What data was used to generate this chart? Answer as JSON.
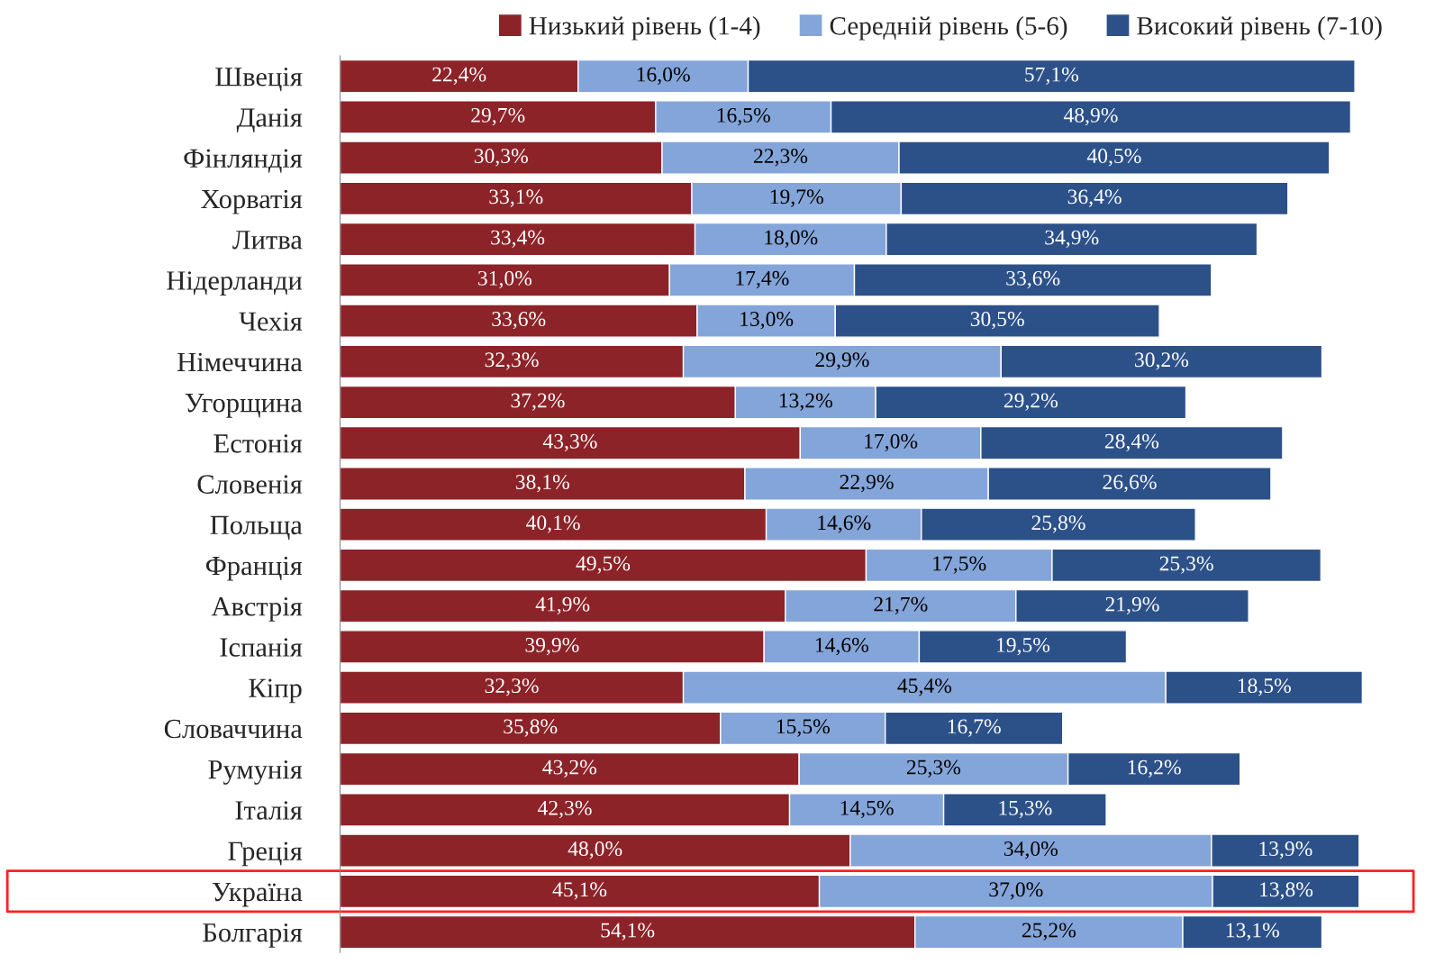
{
  "chart_data": {
    "type": "bar",
    "orientation": "horizontal",
    "stacked": true,
    "legend": "top",
    "tick_labels": "y",
    "grid": false,
    "categories": [
      "Швеція",
      "Данія",
      "Фінляндія",
      "Хорватія",
      "Литва",
      "Нідерланди",
      "Чехія",
      "Німеччина",
      "Угорщина",
      "Естонія",
      "Словенія",
      "Польща",
      "Франція",
      "Австрія",
      "Іспанія",
      "Кіпр",
      "Словаччина",
      "Румунія",
      "Італія",
      "Греція",
      "Україна",
      "Болгарія"
    ],
    "series": [
      {
        "name": "Низький рівень (1-4)",
        "color": "#8c2328",
        "values": [
          22.4,
          29.7,
          30.3,
          33.1,
          33.4,
          31.0,
          33.6,
          32.3,
          37.2,
          43.3,
          38.1,
          40.1,
          49.5,
          41.9,
          39.9,
          32.3,
          35.8,
          43.2,
          42.3,
          48.0,
          45.1,
          54.1
        ],
        "value_labels": [
          "22,4%",
          "29,7%",
          "30,3%",
          "33,1%",
          "33,4%",
          "31,0%",
          "33,6%",
          "32,3%",
          "37,2%",
          "43,3%",
          "38,1%",
          "40,1%",
          "49,5%",
          "41,9%",
          "39,9%",
          "32,3%",
          "35,8%",
          "43,2%",
          "42,3%",
          "48,0%",
          "45,1%",
          "54,1%"
        ]
      },
      {
        "name": "Середній рівень (5-6)",
        "color": "#84a5d9",
        "values": [
          16.0,
          16.5,
          22.3,
          19.7,
          18.0,
          17.4,
          13.0,
          29.9,
          13.2,
          17.0,
          22.9,
          14.6,
          17.5,
          21.7,
          14.6,
          45.4,
          15.5,
          25.3,
          14.5,
          34.0,
          37.0,
          25.2
        ],
        "value_labels": [
          "16,0%",
          "16,5%",
          "22,3%",
          "19,7%",
          "18,0%",
          "17,4%",
          "13,0%",
          "29,9%",
          "13,2%",
          "17,0%",
          "22,9%",
          "14,6%",
          "17,5%",
          "21,7%",
          "14,6%",
          "45,4%",
          "15,5%",
          "25,3%",
          "14,5%",
          "34,0%",
          "37,0%",
          "25,2%"
        ]
      },
      {
        "name": "Високий рівень (7-10)",
        "color": "#2c5189",
        "values": [
          57.1,
          48.9,
          40.5,
          36.4,
          34.9,
          33.6,
          30.5,
          30.2,
          29.2,
          28.4,
          26.6,
          25.8,
          25.3,
          21.9,
          19.5,
          18.5,
          16.7,
          16.2,
          15.3,
          13.9,
          13.8,
          13.1
        ],
        "value_labels": [
          "57,1%",
          "48,9%",
          "40,5%",
          "36,4%",
          "34,9%",
          "33,6%",
          "30,5%",
          "30,2%",
          "29,2%",
          "28,4%",
          "26,6%",
          "25,8%",
          "25,3%",
          "21,9%",
          "19,5%",
          "18,5%",
          "16,7%",
          "16,2%",
          "15,3%",
          "13,9%",
          "13,8%",
          "13,1%"
        ]
      }
    ]
  }
}
